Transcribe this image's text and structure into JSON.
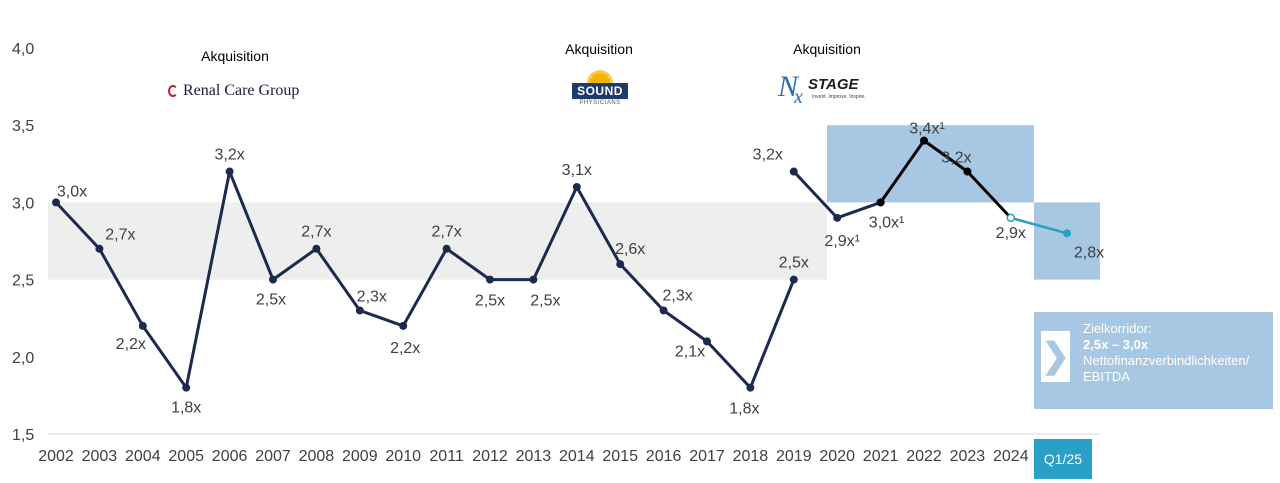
{
  "chart_data": {
    "type": "line",
    "ylim": [
      1.5,
      4.0
    ],
    "yticks": [
      "4,0",
      "3,5",
      "3,0",
      "2,5",
      "2,0",
      "1,5"
    ],
    "ytick_values": [
      4.0,
      3.5,
      3.0,
      2.5,
      2.0,
      1.5
    ],
    "categories": [
      "2002",
      "2003",
      "2004",
      "2005",
      "2006",
      "2007",
      "2008",
      "2009",
      "2010",
      "2011",
      "2012",
      "2013",
      "2014",
      "2015",
      "2016",
      "2017",
      "2018",
      "2019",
      "2020",
      "2021",
      "2022",
      "2023",
      "2024",
      "Q1/25"
    ],
    "series": [
      {
        "color": "#1c2a4e",
        "x": [
          "2002",
          "2003",
          "2004",
          "2005",
          "2006",
          "2007",
          "2008",
          "2009",
          "2010",
          "2011",
          "2012",
          "2013",
          "2014",
          "2015",
          "2016",
          "2017",
          "2018",
          "2019"
        ],
        "values": [
          3.0,
          2.7,
          2.2,
          1.8,
          3.2,
          2.5,
          2.7,
          2.3,
          2.2,
          2.7,
          2.5,
          2.5,
          3.1,
          2.6,
          2.3,
          2.1,
          1.8,
          2.5
        ],
        "labels": [
          "3,0x",
          "2,7x",
          "2,2x",
          "1,8x",
          "3,2x",
          "2,5x",
          "2,7x",
          "2,3x",
          "2,2x",
          "2,7x",
          "2,5x",
          "2,5x",
          "3,1x",
          "2,6x",
          "2,3x",
          "2,1x",
          "1,8x",
          "2,5x"
        ]
      },
      {
        "color": "#1c2a4e",
        "x": [
          "2019",
          "2020",
          "2021"
        ],
        "values": [
          3.2,
          2.9,
          3.0
        ],
        "labels": [
          "3,2x",
          "2,9x¹",
          "3,0x¹"
        ]
      },
      {
        "color": "#000000",
        "x": [
          "2021",
          "2022",
          "2023",
          "2024"
        ],
        "values": [
          3.0,
          3.4,
          3.2,
          2.9
        ],
        "labels": [
          "",
          "3,4x¹",
          "3,2x",
          "2,9x"
        ]
      },
      {
        "color": "#2aa0c6",
        "x": [
          "2024",
          "Q1/25"
        ],
        "values": [
          2.9,
          2.8
        ],
        "labels": [
          "",
          "2,8x"
        ]
      }
    ],
    "bands": [
      {
        "x_from": "2002",
        "x_to": "2019",
        "y_from": 2.5,
        "y_to": 3.0,
        "color": "#eeeeee"
      },
      {
        "x_from": "2020",
        "x_to": "2024",
        "y_from": 3.0,
        "y_to": 3.5,
        "color": "#a7c7e2"
      },
      {
        "x_from": "Q1/25",
        "x_to": "Q1/25",
        "y_from": 2.5,
        "y_to": 3.0,
        "color": "#a7c7e2"
      }
    ],
    "grid": false
  },
  "annotations": {
    "acquisitions": [
      {
        "label": "Akquisition",
        "logo": "Renal Care Group"
      },
      {
        "label": "Akquisition",
        "logo": "SOUND",
        "logo_sub": "PHYSICIANS"
      },
      {
        "label": "Akquisition",
        "logo": "STAGE",
        "logo_prefix": "N",
        "logo_prefix2": "x",
        "logo_tag": "Invent. Improve. Inspire."
      }
    ],
    "zielkorridor": {
      "title": "Zielkorridor:",
      "range": "2,5x – 3,0x",
      "line1": "Nettofinanzverbindlichkeiten/",
      "line2": "EBITDA",
      "arrow_icon": "chevron-right-icon"
    },
    "q1_badge": "Q1/25"
  },
  "colors": {
    "line_main": "#1c2a4e",
    "line_recent": "#000000",
    "line_forecast": "#2aa0c6",
    "band_grey": "#eeeeee",
    "band_blue": "#a7c7e2",
    "badge": "#2aa0c6"
  }
}
